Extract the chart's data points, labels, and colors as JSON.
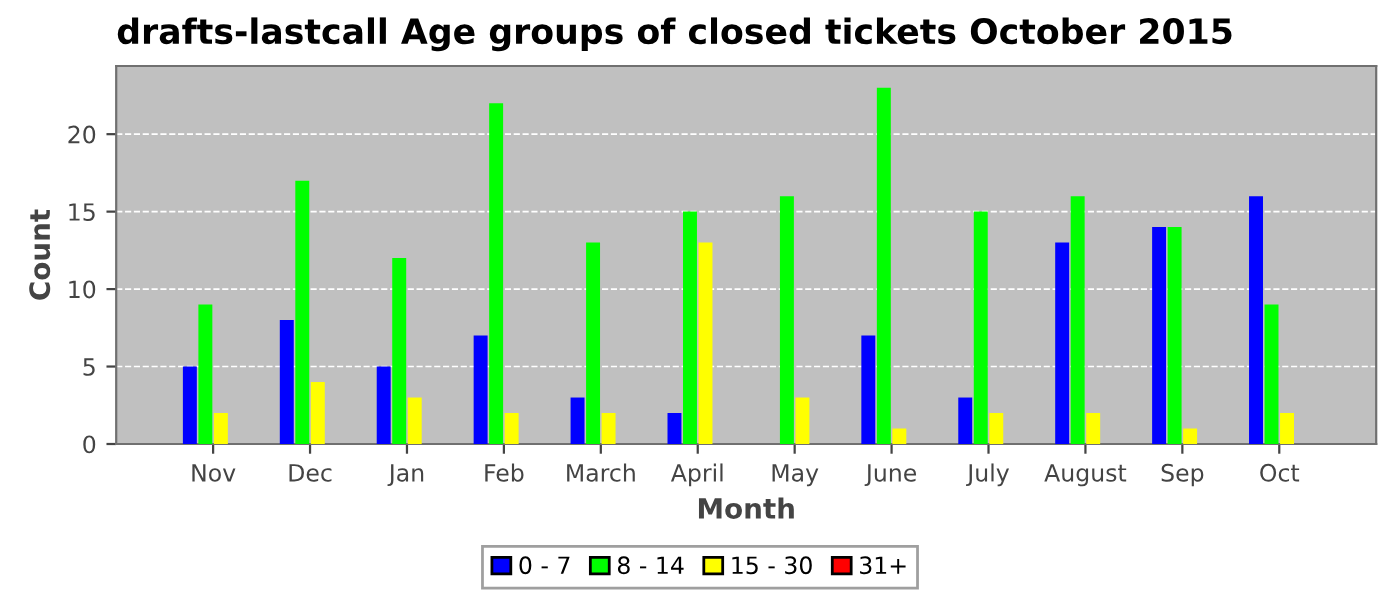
{
  "chart_data": {
    "type": "bar",
    "title": "drafts-lastcall Age groups of closed tickets October 2015",
    "xlabel": "Month",
    "ylabel": "Count",
    "categories": [
      "Nov",
      "Dec",
      "Jan",
      "Feb",
      "March",
      "April",
      "May",
      "June",
      "July",
      "August",
      "Sep",
      "Oct"
    ],
    "series": [
      {
        "name": "0 - 7",
        "color": "#0000ff",
        "values": [
          5,
          8,
          5,
          7,
          3,
          2,
          0,
          7,
          3,
          13,
          14,
          16
        ]
      },
      {
        "name": "8 - 14",
        "color": "#00ff00",
        "values": [
          9,
          17,
          12,
          22,
          13,
          15,
          16,
          23,
          15,
          16,
          14,
          9
        ]
      },
      {
        "name": "15 - 30",
        "color": "#ffff00",
        "values": [
          2,
          4,
          3,
          2,
          2,
          13,
          3,
          1,
          2,
          2,
          1,
          2
        ]
      },
      {
        "name": "31+",
        "color": "#ff0000",
        "values": [
          0,
          0,
          0,
          0,
          0,
          0,
          0,
          0,
          0,
          0,
          0,
          0
        ]
      }
    ],
    "ylim": [
      0,
      24.4
    ],
    "yticks": [
      0,
      5,
      10,
      15,
      20
    ],
    "grid": "y",
    "legend": "bottom"
  }
}
